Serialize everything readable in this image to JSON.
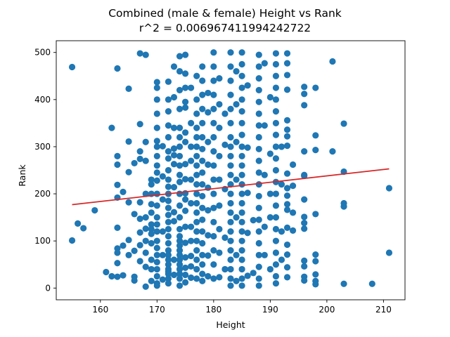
{
  "chart_data": {
    "type": "scatter",
    "title": "Combined (male & female) Height vs Rank",
    "subtitle": "r^2 = 0.006967411994242722",
    "xlabel": "Height",
    "ylabel": "Rank",
    "xlim": [
      152.2,
      213.8
    ],
    "ylim": [
      -24.9,
      524.9
    ],
    "xticks": [
      160,
      170,
      180,
      190,
      200,
      210
    ],
    "yticks": [
      0,
      100,
      200,
      300,
      400,
      500
    ],
    "grid": false,
    "colors": {
      "points": "#1f77b4",
      "fit_line": "#d62728"
    },
    "fit_line": {
      "x": [
        155,
        211
      ],
      "y": [
        177,
        253
      ]
    },
    "x_groups": [
      {
        "x": 155,
        "y": [
          469,
          101
        ]
      },
      {
        "x": 156,
        "y": [
          137
        ]
      },
      {
        "x": 157,
        "y": [
          127
        ]
      },
      {
        "x": 159,
        "y": [
          165
        ]
      },
      {
        "x": 161,
        "y": [
          34
        ]
      },
      {
        "x": 162,
        "y": [
          340,
          25
        ]
      },
      {
        "x": 163,
        "y": [
          466,
          280,
          262,
          219,
          192,
          128,
          84,
          75,
          53,
          24
        ]
      },
      {
        "x": 164,
        "y": [
          204,
          90,
          27
        ]
      },
      {
        "x": 165,
        "y": [
          423,
          311,
          246,
          182,
          102,
          70
        ]
      },
      {
        "x": 166,
        "y": [
          265,
          157,
          79,
          24,
          16
        ]
      },
      {
        "x": 167,
        "y": [
          498,
          348,
          290,
          274,
          182,
          147,
          118,
          91,
          57
        ]
      },
      {
        "x": 168,
        "y": [
          495,
          310,
          270,
          200,
          150,
          126,
          100,
          75,
          45,
          3
        ]
      },
      {
        "x": 169,
        "y": [
          230,
          220,
          200,
          178,
          160,
          135,
          125,
          115,
          95,
          60,
          40,
          15
        ]
      },
      {
        "x": 170,
        "y": [
          437,
          425,
          400,
          370,
          340,
          312,
          300,
          280,
          260,
          245,
          228,
          200,
          175,
          150,
          135,
          120,
          100,
          85,
          70,
          55,
          40,
          25,
          10,
          5
        ]
      },
      {
        "x": 171,
        "y": [
          301,
          237,
          188,
          120,
          70,
          18
        ]
      },
      {
        "x": 172,
        "y": [
          438,
          400,
          375,
          345,
          320,
          290,
          275,
          250,
          230,
          215,
          200,
          185,
          170,
          155,
          140,
          125,
          110,
          95,
          80,
          70,
          60,
          50,
          40,
          35,
          30,
          20,
          10
        ]
      },
      {
        "x": 173,
        "y": [
          470,
          405,
          340,
          296,
          282,
          263,
          214,
          161,
          142,
          60,
          28
        ]
      },
      {
        "x": 174,
        "y": [
          492,
          460,
          420,
          380,
          340,
          320,
          300,
          280,
          260,
          240,
          225,
          200,
          175,
          150,
          125,
          110,
          100,
          90,
          80,
          70,
          60,
          50,
          40,
          30,
          20,
          5
        ]
      },
      {
        "x": 175,
        "y": [
          495,
          455,
          425,
          395,
          383,
          330,
          310,
          263,
          231,
          201,
          188,
          164,
          130,
          96,
          65,
          43,
          28,
          12
        ]
      },
      {
        "x": 176,
        "y": [
          425,
          350,
          300,
          270,
          230,
          180,
          130,
          100,
          68,
          46,
          22
        ]
      },
      {
        "x": 177,
        "y": [
          450,
          400,
          370,
          340,
          320,
          300,
          280,
          260,
          240,
          220,
          200,
          180,
          160,
          140,
          120,
          100,
          80,
          60,
          40,
          20
        ]
      },
      {
        "x": 178,
        "y": [
          470,
          440,
          410,
          380,
          350,
          320,
          295,
          270,
          245,
          220,
          195,
          170,
          145,
          120,
          95,
          70,
          50,
          30,
          15
        ]
      },
      {
        "x": 179,
        "y": [
          414,
          373,
          310,
          262,
          213,
          165,
          112,
          69,
          25
        ]
      },
      {
        "x": 180,
        "y": [
          500,
          470,
          440,
          410,
          380,
          350,
          320,
          290,
          260,
          230,
          200,
          170,
          140,
          110,
          80,
          50,
          20
        ]
      },
      {
        "x": 181,
        "y": [
          445,
          390,
          340,
          280,
          230,
          175,
          125,
          75,
          23
        ]
      },
      {
        "x": 182,
        "y": [
          370,
          304,
          210,
          107,
          40
        ]
      },
      {
        "x": 183,
        "y": [
          500,
          470,
          440,
          410,
          380,
          350,
          320,
          300,
          280,
          260,
          240,
          220,
          200,
          180,
          160,
          140,
          120,
          100,
          80,
          60,
          40,
          20,
          5
        ]
      },
      {
        "x": 184,
        "y": [
          460,
          390,
          310,
          230,
          150,
          70,
          15
        ]
      },
      {
        "x": 185,
        "y": [
          500,
          475,
          450,
          425,
          400,
          375,
          350,
          325,
          300,
          280,
          260,
          240,
          220,
          200,
          180,
          160,
          140,
          120,
          100,
          80,
          60,
          40,
          20,
          5
        ]
      },
      {
        "x": 186,
        "y": [
          430,
          298,
          202,
          117,
          26
        ]
      },
      {
        "x": 187,
        "y": [
          144,
          32
        ]
      },
      {
        "x": 188,
        "y": [
          495,
          470,
          445,
          420,
          395,
          370,
          345,
          320,
          295,
          270,
          245,
          220,
          195,
          170,
          145,
          120,
          95,
          70,
          45,
          20,
          5
        ]
      },
      {
        "x": 189,
        "y": [
          477,
          345,
          240,
          130,
          70
        ]
      },
      {
        "x": 190,
        "y": [
          405,
          285,
          200,
          150,
          40
        ]
      },
      {
        "x": 191,
        "y": [
          498,
          475,
          450,
          425,
          400,
          375,
          350,
          325,
          300,
          275,
          250,
          225,
          200,
          175,
          150,
          125,
          100,
          75,
          50,
          25,
          10
        ]
      },
      {
        "x": 192,
        "y": [
          300,
          220,
          120,
          60
        ]
      },
      {
        "x": 193,
        "y": [
          498,
          477,
          452,
          421,
          356,
          336,
          322,
          302,
          243,
          212,
          196,
          178,
          166,
          128,
          92,
          71,
          44,
          23
        ]
      },
      {
        "x": 194,
        "y": [
          262,
          217,
          160,
          122
        ]
      },
      {
        "x": 196,
        "y": [
          427,
          412,
          388,
          290,
          240,
          238,
          188,
          151,
          138,
          126,
          58,
          46,
          24,
          16
        ]
      },
      {
        "x": 198,
        "y": [
          425,
          324,
          293,
          157,
          71,
          57,
          29,
          15,
          8
        ]
      },
      {
        "x": 201,
        "y": [
          481,
          290
        ]
      },
      {
        "x": 203,
        "y": [
          349,
          247,
          180,
          173,
          9
        ]
      },
      {
        "x": 208,
        "y": [
          9
        ]
      },
      {
        "x": 211,
        "y": [
          212,
          75
        ]
      }
    ]
  }
}
